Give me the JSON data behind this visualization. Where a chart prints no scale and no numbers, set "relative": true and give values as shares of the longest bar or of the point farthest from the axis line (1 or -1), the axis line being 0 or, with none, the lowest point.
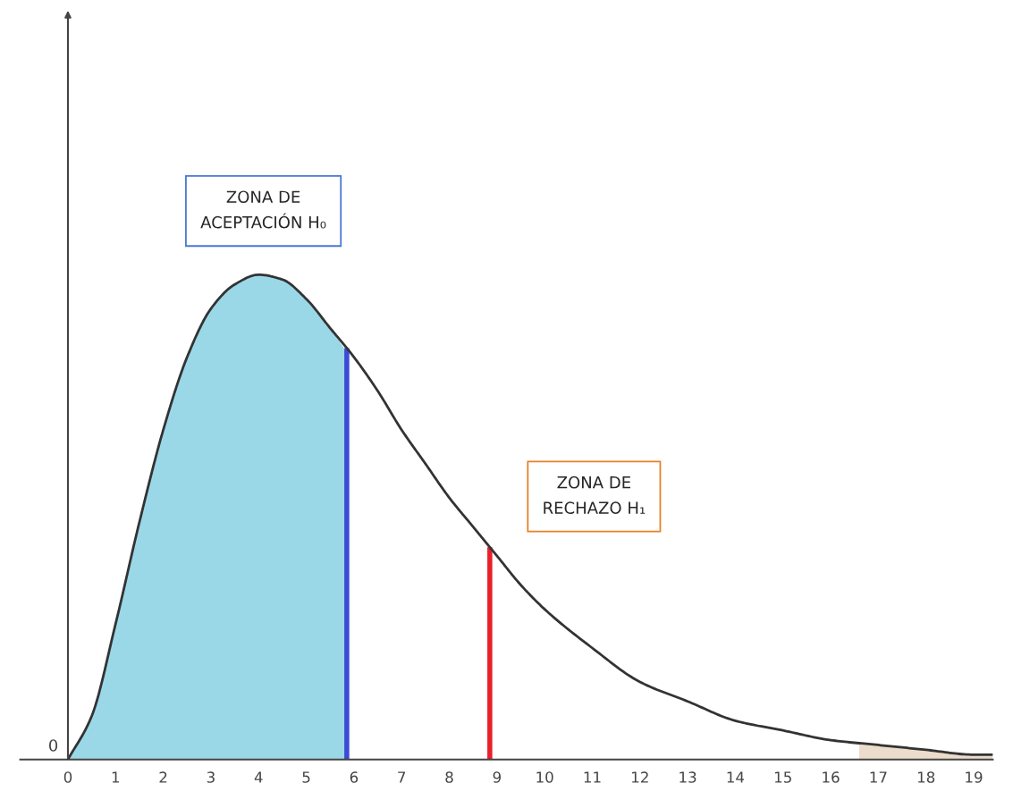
{
  "chart_data": {
    "type": "line",
    "relative": true,
    "xlim": [
      -1,
      19.4
    ],
    "xticks": [
      0,
      1,
      2,
      3,
      4,
      5,
      6,
      7,
      8,
      9,
      10,
      11,
      12,
      13,
      14,
      15,
      16,
      17,
      18,
      19
    ],
    "series": [
      {
        "type": "area",
        "color": "#9ad8e8",
        "x": [
          0,
          0.5,
          1,
          1.5,
          2,
          2.5,
          3,
          3.5,
          4,
          4.5,
          5,
          5.5,
          5.85
        ],
        "values": [
          0,
          0.09,
          0.28,
          0.49,
          0.68,
          0.83,
          0.93,
          0.98,
          1,
          0.99,
          0.95,
          0.89,
          0.84
        ]
      },
      {
        "type": "area",
        "color": "#ecdccb",
        "x": [
          16.6,
          17,
          18,
          19,
          19.4
        ],
        "values": [
          0.035,
          0.03,
          0.02,
          0.01,
          0.01
        ]
      },
      {
        "color": "#333333",
        "x": [
          0,
          0.5,
          1,
          1.5,
          2,
          2.5,
          3,
          3.5,
          4,
          4.5,
          5,
          5.5,
          6,
          6.5,
          7,
          7.5,
          8,
          8.5,
          9,
          9.5,
          10,
          11,
          12,
          13,
          14,
          15,
          16,
          17,
          18,
          19,
          19.4
        ],
        "values": [
          0,
          0.09,
          0.28,
          0.49,
          0.68,
          0.83,
          0.93,
          0.98,
          1,
          0.99,
          0.95,
          0.89,
          0.83,
          0.76,
          0.68,
          0.61,
          0.54,
          0.48,
          0.42,
          0.36,
          0.31,
          0.23,
          0.16,
          0.12,
          0.08,
          0.06,
          0.04,
          0.03,
          0.02,
          0.01,
          0.01
        ]
      }
    ],
    "ref_lines": [
      {
        "axis": "x",
        "value": 5.85,
        "color": "#3b4bd6"
      },
      {
        "axis": "x",
        "value": 8.85,
        "color": "#e8202a"
      }
    ],
    "annotations": [
      "ZONA DE\nACEPTACIÓN H₀",
      "ZONA DE\nRECHAZO H₁",
      "0"
    ],
    "grid": false,
    "legend": false
  }
}
